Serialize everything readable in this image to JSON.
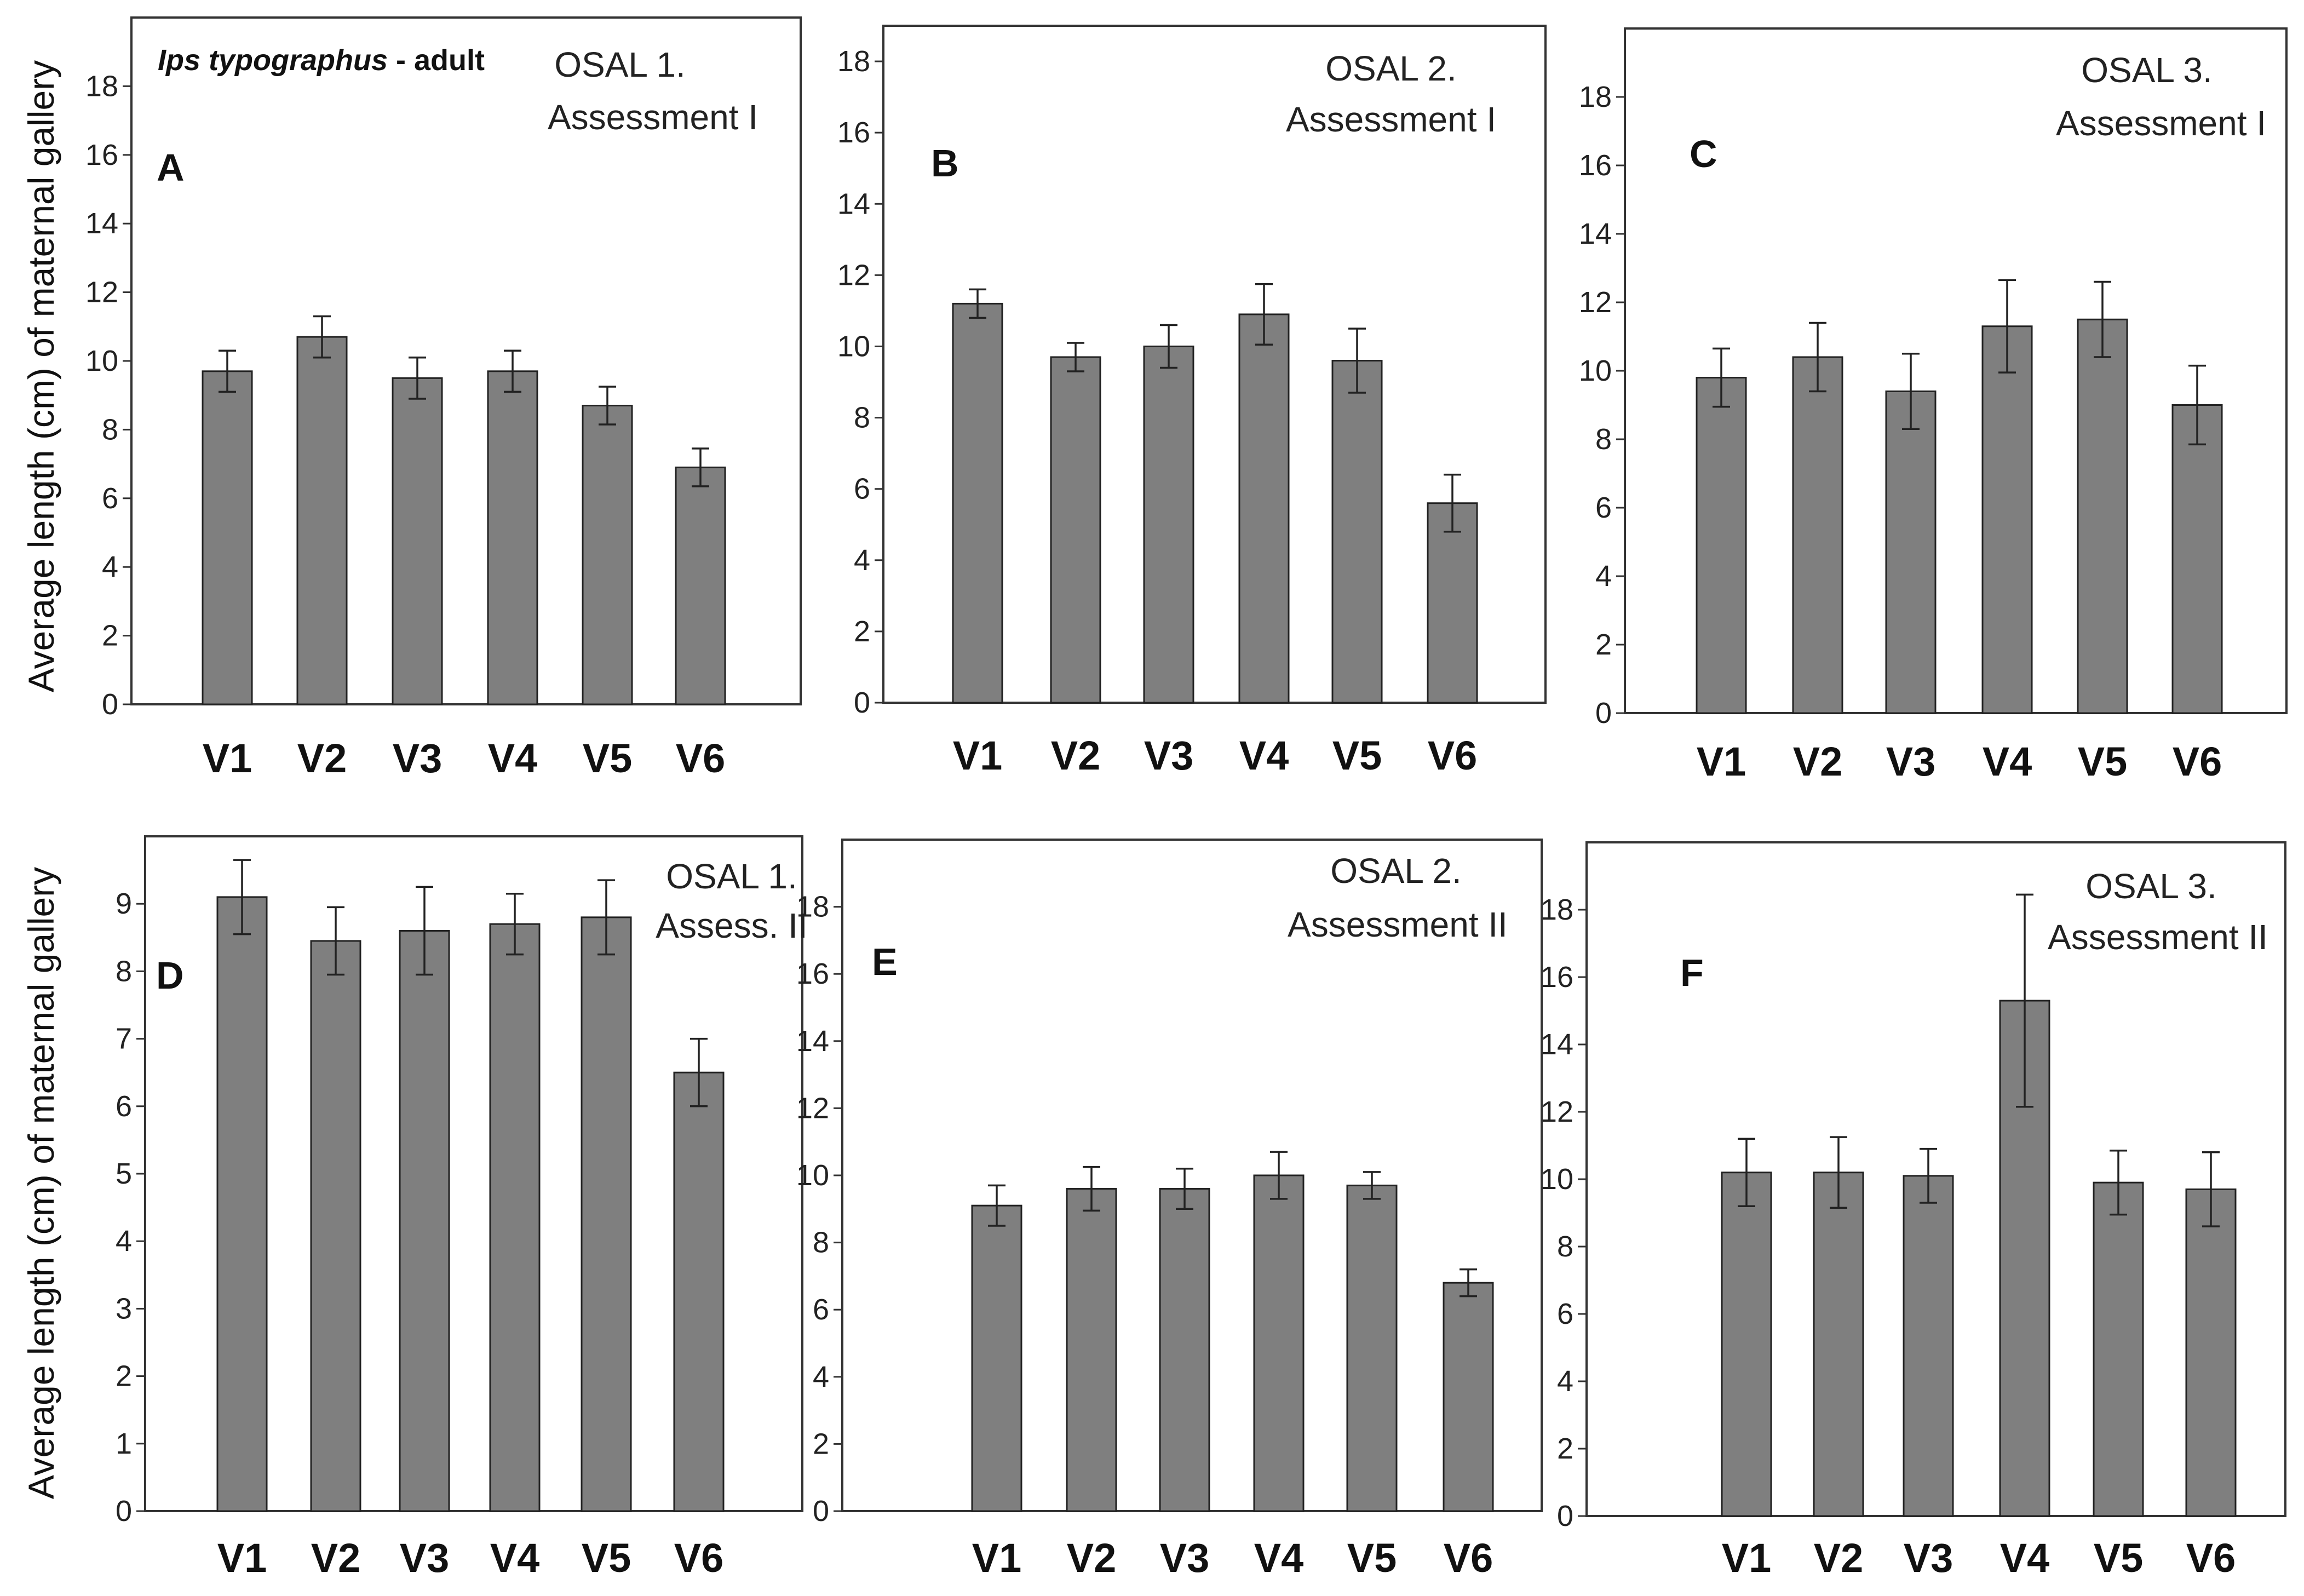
{
  "figure": {
    "ylabel": "Average length (cm) of maternal gallery",
    "species_italic": "Ips typographus",
    "species_suffix": " - adult"
  },
  "colors": {
    "bar_fill": "#7f7f7f",
    "bar_stroke": "#222222",
    "frame_stroke": "#333333",
    "text": "#111111"
  },
  "chart_data": [
    {
      "type": "bar",
      "panel": "A",
      "title": [
        "OSAL 1.",
        "Assessment I"
      ],
      "categories": [
        "V1",
        "V2",
        "V3",
        "V4",
        "V5",
        "V6"
      ],
      "values": [
        9.7,
        10.7,
        9.5,
        9.7,
        8.7,
        6.9
      ],
      "error": [
        0.6,
        0.6,
        0.6,
        0.6,
        0.55,
        0.55
      ],
      "ylim": [
        0,
        20
      ],
      "yticks": [
        0,
        2,
        4,
        6,
        8,
        10,
        12,
        14,
        16,
        18
      ],
      "xlabel": "",
      "ylabel": "Average length (cm) of maternal gallery"
    },
    {
      "type": "bar",
      "panel": "B",
      "title": [
        "OSAL 2.",
        "Assessment I"
      ],
      "categories": [
        "V1",
        "V2",
        "V3",
        "V4",
        "V5",
        "V6"
      ],
      "values": [
        11.2,
        9.7,
        10.0,
        10.9,
        9.6,
        5.6
      ],
      "error": [
        0.4,
        0.4,
        0.6,
        0.85,
        0.9,
        0.8
      ],
      "ylim": [
        0,
        19
      ],
      "yticks": [
        0,
        2,
        4,
        6,
        8,
        10,
        12,
        14,
        16,
        18
      ],
      "xlabel": "",
      "ylabel": ""
    },
    {
      "type": "bar",
      "panel": "C",
      "title": [
        "OSAL 3.",
        "Assessment I"
      ],
      "categories": [
        "V1",
        "V2",
        "V3",
        "V4",
        "V5",
        "V6"
      ],
      "values": [
        9.8,
        10.4,
        9.4,
        11.3,
        11.5,
        9.0
      ],
      "error": [
        0.85,
        1.0,
        1.1,
        1.35,
        1.1,
        1.15
      ],
      "ylim": [
        0,
        20
      ],
      "yticks": [
        0,
        2,
        4,
        6,
        8,
        10,
        12,
        14,
        16,
        18
      ],
      "xlabel": "",
      "ylabel": ""
    },
    {
      "type": "bar",
      "panel": "D",
      "title": [
        "OSAL 1.",
        "Assess. II"
      ],
      "categories": [
        "V1",
        "V2",
        "V3",
        "V4",
        "V5",
        "V6"
      ],
      "values": [
        9.1,
        8.45,
        8.6,
        8.7,
        8.8,
        6.5
      ],
      "error": [
        0.55,
        0.5,
        0.65,
        0.45,
        0.55,
        0.5
      ],
      "ylim": [
        0,
        10
      ],
      "yticks": [
        0,
        1,
        2,
        3,
        4,
        5,
        6,
        7,
        8,
        9
      ],
      "xlabel": "",
      "ylabel": "Average length (cm) of maternal gallery"
    },
    {
      "type": "bar",
      "panel": "E",
      "title": [
        "OSAL 2.",
        "Assessment II"
      ],
      "categories": [
        "V1",
        "V2",
        "V3",
        "V4",
        "V5",
        "V6"
      ],
      "values": [
        9.1,
        9.6,
        9.6,
        10.0,
        9.7,
        6.8
      ],
      "error": [
        0.6,
        0.65,
        0.6,
        0.7,
        0.4,
        0.4
      ],
      "ylim": [
        0,
        20
      ],
      "yticks": [
        0,
        2,
        4,
        6,
        8,
        10,
        12,
        14,
        16,
        18
      ],
      "xlabel": "",
      "ylabel": ""
    },
    {
      "type": "bar",
      "panel": "F",
      "title": [
        "OSAL 3.",
        "Assessment II"
      ],
      "categories": [
        "V1",
        "V2",
        "V3",
        "V4",
        "V5",
        "V6"
      ],
      "values": [
        10.2,
        10.2,
        10.1,
        15.3,
        9.9,
        9.7
      ],
      "error": [
        1.0,
        1.05,
        0.8,
        3.15,
        0.95,
        1.1
      ],
      "ylim": [
        0,
        20
      ],
      "yticks": [
        0,
        2,
        4,
        6,
        8,
        10,
        12,
        14,
        16,
        18
      ],
      "xlabel": "",
      "ylabel": ""
    }
  ]
}
